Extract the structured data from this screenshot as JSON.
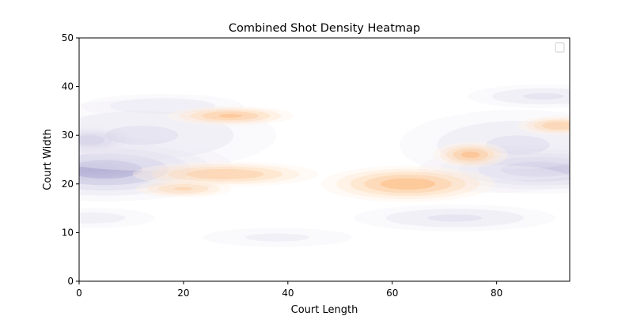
{
  "chart_data": {
    "type": "heatmap",
    "title": "Combined Shot Density Heatmap",
    "xlabel": "Court Length",
    "ylabel": "Court Width",
    "xlim": [
      0,
      94
    ],
    "ylim": [
      0,
      50
    ],
    "xticks": [
      0,
      20,
      40,
      60,
      80
    ],
    "yticks": [
      0,
      10,
      20,
      30,
      40,
      50
    ],
    "grid": false,
    "legend": {
      "placement": "top-right",
      "entries": []
    },
    "colors": {
      "purple": "#5e3c99",
      "orange": "#e6550d"
    },
    "series": [
      {
        "colormap": "purple",
        "blobs": [
          {
            "x": 3,
            "y": 23,
            "sx": 6,
            "sy": 1.2,
            "peak": 1.0
          },
          {
            "x": 5,
            "y": 23,
            "sx": 12,
            "sy": 3.2,
            "peak": 0.5
          },
          {
            "x": 2,
            "y": 29,
            "sx": 4,
            "sy": 1.4,
            "peak": 0.55
          },
          {
            "x": 12,
            "y": 30,
            "sx": 16,
            "sy": 4.5,
            "peak": 0.22
          },
          {
            "x": 16,
            "y": 36,
            "sx": 10,
            "sy": 1.6,
            "peak": 0.2
          },
          {
            "x": 2,
            "y": 13,
            "sx": 9,
            "sy": 1.5,
            "peak": 0.16
          },
          {
            "x": 38,
            "y": 9,
            "sx": 11,
            "sy": 1.5,
            "peak": 0.14
          },
          {
            "x": 90,
            "y": 23,
            "sx": 4,
            "sy": 0.8,
            "peak": 0.95
          },
          {
            "x": 88,
            "y": 23,
            "sx": 11,
            "sy": 2.4,
            "peak": 0.52
          },
          {
            "x": 84,
            "y": 28,
            "sx": 14,
            "sy": 4.5,
            "peak": 0.22
          },
          {
            "x": 89,
            "y": 38,
            "sx": 9,
            "sy": 1.5,
            "peak": 0.22
          },
          {
            "x": 72,
            "y": 13,
            "sx": 12,
            "sy": 1.7,
            "peak": 0.22
          },
          {
            "x": 80,
            "y": 21,
            "sx": 12,
            "sy": 2.4,
            "peak": 0.12
          }
        ]
      },
      {
        "colormap": "orange",
        "blobs": [
          {
            "x": 28,
            "y": 22,
            "sx": 9,
            "sy": 1.3,
            "peak": 0.42
          },
          {
            "x": 29,
            "y": 34,
            "sx": 6,
            "sy": 1.0,
            "peak": 0.45
          },
          {
            "x": 20,
            "y": 19,
            "sx": 5,
            "sy": 1.0,
            "peak": 0.32
          },
          {
            "x": 63,
            "y": 20,
            "sx": 8,
            "sy": 1.8,
            "peak": 0.52
          },
          {
            "x": 75,
            "y": 26,
            "sx": 3.5,
            "sy": 1.3,
            "peak": 0.48
          },
          {
            "x": 92,
            "y": 32,
            "sx": 4,
            "sy": 1.0,
            "peak": 0.42
          }
        ]
      }
    ]
  }
}
